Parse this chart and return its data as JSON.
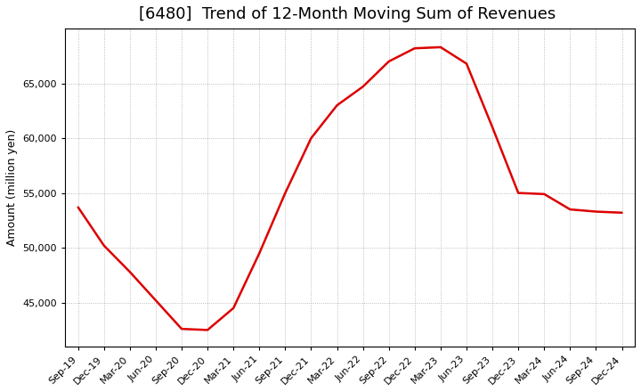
{
  "title": "[6480]  Trend of 12-Month Moving Sum of Revenues",
  "ylabel": "Amount (million yen)",
  "line_color": "#dd0000",
  "background_color": "#ffffff",
  "plot_bg_color": "#ffffff",
  "grid_color": "#aaaaaa",
  "x_labels": [
    "Sep-19",
    "Dec-19",
    "Mar-20",
    "Jun-20",
    "Sep-20",
    "Dec-20",
    "Mar-21",
    "Jun-21",
    "Sep-21",
    "Dec-21",
    "Mar-22",
    "Jun-22",
    "Sep-22",
    "Dec-22",
    "Mar-23",
    "Jun-23",
    "Sep-23",
    "Dec-23",
    "Mar-24",
    "Jun-24",
    "Sep-24",
    "Dec-24"
  ],
  "values": [
    53700,
    50200,
    47800,
    45200,
    42600,
    42500,
    44500,
    49500,
    55000,
    60000,
    63000,
    64700,
    67000,
    68200,
    68300,
    66800,
    61000,
    55000,
    54900,
    53500,
    53300,
    53200
  ],
  "ylim": [
    41000,
    70000
  ],
  "yticks": [
    45000,
    50000,
    55000,
    60000,
    65000
  ],
  "title_fontsize": 13,
  "axis_fontsize": 9,
  "tick_fontsize": 8
}
